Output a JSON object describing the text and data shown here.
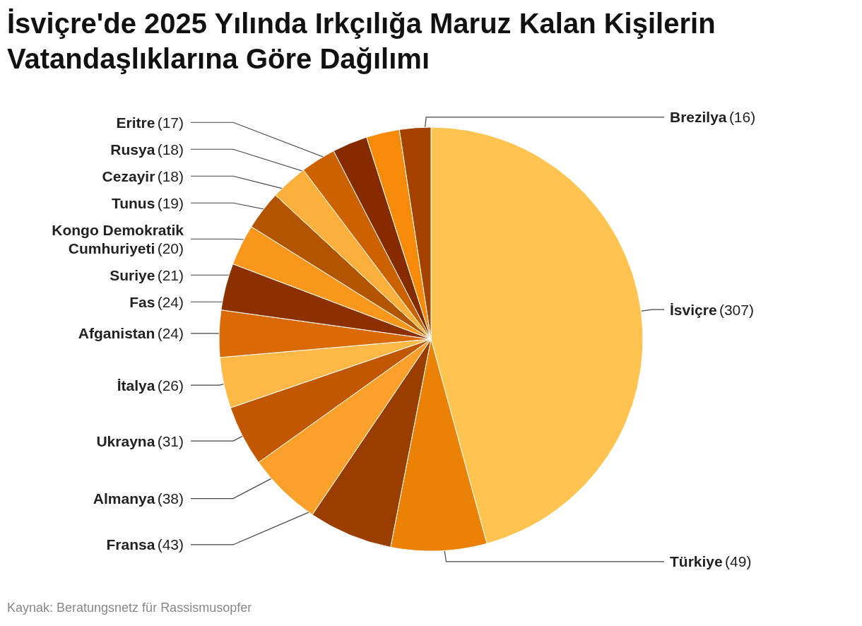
{
  "chart_data": {
    "type": "pie",
    "title": "İsviçre'de 2025 Yılında Irkçılığa Maruz Kalan Kişilerin Vatandaşlıklarına Göre Dağılımı",
    "categories": [
      "İsviçre",
      "Türkiye",
      "Fransa",
      "Almanya",
      "Ukrayna",
      "İtalya",
      "Afganistan",
      "Fas",
      "Suriye",
      "Kongo Demokratik Cumhuriyeti",
      "Tunus",
      "Cezayir",
      "Rusya",
      "Eritre",
      "Brezilya"
    ],
    "values": [
      307,
      49,
      43,
      38,
      31,
      26,
      24,
      24,
      21,
      20,
      19,
      18,
      18,
      17,
      16
    ],
    "value_labels": [
      "(307)",
      "(49)",
      "(43)",
      "(38)",
      "(31)",
      "(26)",
      "(24)",
      "(24)",
      "(21)",
      "(20)",
      "(19)",
      "(18)",
      "(18)",
      "(17)",
      "(16)"
    ],
    "colors": [
      "#fec44f",
      "#ec8205",
      "#993d00",
      "#fba02a",
      "#c15700",
      "#fdb845",
      "#da6a05",
      "#8c3000",
      "#f9961c",
      "#b35500",
      "#fbb03b",
      "#cc6100",
      "#862a00",
      "#f68b0a",
      "#a64200"
    ],
    "legend": false,
    "annotations": [
      "Kaynak: Beratungsnetz für Rassismusopfer"
    ]
  }
}
